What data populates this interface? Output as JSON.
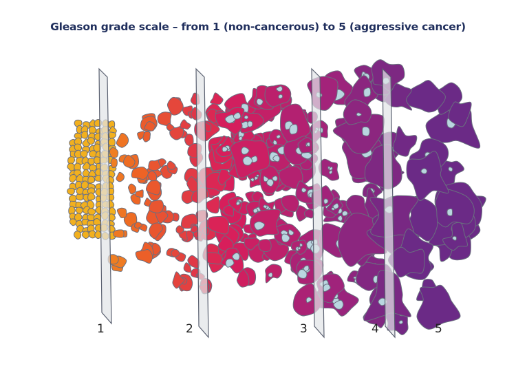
{
  "title": "Gleason grade scale – from 1 (non-cancerous) to 5 (aggressive cancer)",
  "grades": [
    {
      "label": "1",
      "color": "#f2b01e"
    },
    {
      "label": "2",
      "color": "#ee6424"
    },
    {
      "label": "3",
      "color": "#d81e5b"
    },
    {
      "label": "4",
      "color": "#a3237a"
    },
    {
      "label": "5",
      "color": "#6b2a86"
    }
  ],
  "colors": {
    "outline": "#6a6f7f",
    "lumen": "#b9d6e0",
    "plane_fill": "#e2e4e8",
    "plane_stroke": "#5a6070",
    "title": "#1f2e5c"
  }
}
